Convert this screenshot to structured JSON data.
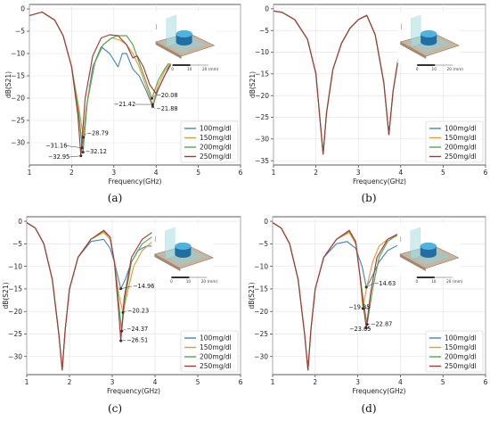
{
  "figure": {
    "colors": {
      "s100": "#4a86b3",
      "s150": "#e49b3d",
      "s200": "#52a852",
      "s250": "#a33a3a"
    }
  },
  "chart_data": [
    {
      "id": "a",
      "caption": "(a)",
      "type": "line",
      "xlabel": "Frequency(GHz)",
      "ylabel": "dB(S21)",
      "xlim": [
        1,
        6
      ],
      "ylim": [
        -35,
        1
      ],
      "xticks": [
        1,
        2,
        3,
        4,
        5,
        6
      ],
      "yticks": [
        0,
        -5,
        -10,
        -15,
        -20,
        -25,
        -30
      ],
      "legend_position": "bottom-right",
      "grid": true,
      "inset": {
        "ticks": [
          "0",
          "10",
          "20",
          "(mm)"
        ]
      },
      "series": [
        {
          "name": "100mg/dl",
          "color": "#4a86b3",
          "x": [
            1.0,
            1.3,
            1.6,
            1.8,
            2.0,
            2.15,
            2.25,
            2.35,
            2.5,
            2.7,
            2.9,
            3.1,
            3.2,
            3.3,
            3.45,
            3.6,
            3.75,
            3.92,
            4.05,
            4.2,
            4.35
          ],
          "y": [
            -1.5,
            -0.7,
            -2.5,
            -6,
            -13,
            -22,
            -31.16,
            -22,
            -13,
            -8.5,
            -10,
            -13,
            -10,
            -10,
            -13.5,
            -15,
            -18,
            -21.88,
            -18,
            -15,
            -12
          ]
        },
        {
          "name": "150mg/dl",
          "color": "#e49b3d",
          "x": [
            1.0,
            1.3,
            1.6,
            1.8,
            2.0,
            2.15,
            2.28,
            2.38,
            2.55,
            2.75,
            2.95,
            3.15,
            3.3,
            3.45,
            3.6,
            3.75,
            3.92,
            4.05,
            4.2,
            4.35
          ],
          "y": [
            -1.5,
            -0.7,
            -2.5,
            -6,
            -13,
            -21,
            -28.79,
            -20,
            -12,
            -8,
            -6.5,
            -7,
            -8,
            -10,
            -13,
            -17,
            -21.42,
            -17,
            -14,
            -12
          ]
        },
        {
          "name": "200mg/dl",
          "color": "#52a852",
          "x": [
            1.0,
            1.3,
            1.6,
            1.8,
            2.0,
            2.15,
            2.27,
            2.37,
            2.55,
            2.75,
            2.95,
            3.1,
            3.3,
            3.45,
            3.6,
            3.75,
            3.9,
            4.05,
            4.2,
            4.35
          ],
          "y": [
            -1.5,
            -0.7,
            -2.5,
            -6,
            -13,
            -22,
            -32.12,
            -21,
            -12,
            -8,
            -6.5,
            -6,
            -6,
            -8,
            -12,
            -16,
            -20.08,
            -16,
            -13.5,
            -11.5
          ]
        },
        {
          "name": "250mg/dl",
          "color": "#a33a3a",
          "x": [
            1.0,
            1.3,
            1.6,
            1.8,
            2.0,
            2.15,
            2.22,
            2.32,
            2.5,
            2.7,
            2.9,
            3.1,
            3.3,
            3.45,
            3.55,
            3.7,
            3.85,
            4.0,
            4.2,
            4.35
          ],
          "y": [
            -1.5,
            -0.7,
            -2.5,
            -6,
            -13,
            -24,
            -32.95,
            -20,
            -10.5,
            -6.5,
            -5.8,
            -6,
            -8,
            -11,
            -10.5,
            -13,
            -17,
            -19,
            -15,
            -12.5
          ]
        }
      ],
      "annotations": [
        {
          "text": "-28.79",
          "x": 2.28,
          "y": -28.79,
          "tx": 2.36,
          "ty": -28.3
        },
        {
          "text": "-31.16",
          "x": 2.25,
          "y": -31.16,
          "tx": 1.38,
          "ty": -31.1
        },
        {
          "text": "-32.12",
          "x": 2.27,
          "y": -32.12,
          "tx": 2.32,
          "ty": -32.4
        },
        {
          "text": "-32.95",
          "x": 2.22,
          "y": -32.95,
          "tx": 1.44,
          "ty": -33.6
        },
        {
          "text": "-20.08",
          "x": 3.9,
          "y": -20.08,
          "tx": 4.0,
          "ty": -19.8
        },
        {
          "text": "-21.42",
          "x": 3.92,
          "y": -21.42,
          "tx": 3.0,
          "ty": -21.8
        },
        {
          "text": "-21.88",
          "x": 3.92,
          "y": -21.88,
          "tx": 4.0,
          "ty": -22.8
        }
      ]
    },
    {
      "id": "b",
      "caption": "(b)",
      "type": "line",
      "xlabel": "Frequency(GHz)",
      "ylabel": "dB(S21)",
      "xlim": [
        1,
        6
      ],
      "ylim": [
        -36,
        1
      ],
      "xticks": [
        1,
        2,
        3,
        4,
        5,
        6
      ],
      "yticks": [
        0,
        -5,
        -10,
        -15,
        -20,
        -25,
        -30,
        -35
      ],
      "legend_position": "bottom-right",
      "grid": true,
      "inset": {
        "ticks": [
          "0",
          "10",
          "20",
          "(mm)"
        ]
      },
      "series": [
        {
          "name": "100mg/dl",
          "color": "#4a86b3",
          "x": [
            1.0,
            1.2,
            1.5,
            1.8,
            2.0,
            2.1,
            2.17,
            2.25,
            2.4,
            2.6,
            2.8,
            3.0,
            3.2,
            3.4,
            3.6,
            3.72,
            3.82,
            3.95,
            4.1
          ],
          "y": [
            -0.5,
            -0.8,
            -2.5,
            -7,
            -15,
            -26,
            -33.5,
            -24,
            -14,
            -8,
            -4.5,
            -2.5,
            -1.5,
            -6,
            -17,
            -29,
            -19,
            -11,
            -7.5
          ]
        },
        {
          "name": "150mg/dl",
          "color": "#e49b3d",
          "x": [
            1.0,
            1.2,
            1.5,
            1.8,
            2.0,
            2.1,
            2.17,
            2.25,
            2.4,
            2.6,
            2.8,
            3.0,
            3.2,
            3.4,
            3.6,
            3.72,
            3.82,
            3.95,
            4.1
          ],
          "y": [
            -0.5,
            -0.8,
            -2.5,
            -7,
            -15,
            -26,
            -33.5,
            -24,
            -14,
            -8,
            -4.5,
            -2.5,
            -1.5,
            -6,
            -17,
            -29,
            -19,
            -11,
            -7.5
          ]
        },
        {
          "name": "200mg/dl",
          "color": "#52a852",
          "x": [
            1.0,
            1.2,
            1.5,
            1.8,
            2.0,
            2.1,
            2.17,
            2.25,
            2.4,
            2.6,
            2.8,
            3.0,
            3.2,
            3.4,
            3.6,
            3.72,
            3.82,
            3.95,
            4.1
          ],
          "y": [
            -0.5,
            -0.8,
            -2.5,
            -7,
            -15,
            -26,
            -33.5,
            -24,
            -14,
            -8,
            -4.5,
            -2.5,
            -1.5,
            -6,
            -17,
            -29,
            -19,
            -11,
            -7.5
          ]
        },
        {
          "name": "250mg/dl",
          "color": "#a33a3a",
          "x": [
            1.0,
            1.2,
            1.5,
            1.8,
            2.0,
            2.1,
            2.17,
            2.25,
            2.4,
            2.6,
            2.8,
            3.0,
            3.2,
            3.4,
            3.6,
            3.72,
            3.82,
            3.95,
            4.1
          ],
          "y": [
            -0.5,
            -0.8,
            -2.5,
            -7,
            -15,
            -26,
            -33.5,
            -24,
            -14,
            -8,
            -4.5,
            -2.5,
            -1.5,
            -6,
            -17,
            -29,
            -19,
            -11,
            -7.5
          ]
        }
      ],
      "annotations": []
    },
    {
      "id": "c",
      "caption": "(c)",
      "type": "line",
      "xlabel": "Frequency(GHz)",
      "ylabel": "dB(S21)",
      "xlim": [
        1,
        6
      ],
      "ylim": [
        -34,
        1
      ],
      "xticks": [
        1,
        2,
        3,
        4,
        5,
        6
      ],
      "yticks": [
        0,
        -5,
        -10,
        -15,
        -20,
        -25,
        -30
      ],
      "legend_position": "bottom-right",
      "grid": true,
      "inset": {
        "ticks": [
          "0",
          "10",
          "20",
          "(mm)"
        ]
      },
      "series": [
        {
          "name": "100mg/dl",
          "color": "#4a86b3",
          "x": [
            1.0,
            1.2,
            1.4,
            1.6,
            1.75,
            1.83,
            1.9,
            2.0,
            2.2,
            2.5,
            2.8,
            2.95,
            3.05,
            3.2,
            3.3,
            3.45,
            3.6,
            3.8,
            4.0
          ],
          "y": [
            -0.3,
            -1.5,
            -5,
            -13,
            -25,
            -33,
            -24,
            -15,
            -8,
            -4.5,
            -4,
            -6,
            -9,
            -14.96,
            -13,
            -9,
            -6.5,
            -5.5,
            -5.5
          ]
        },
        {
          "name": "150mg/dl",
          "color": "#e49b3d",
          "x": [
            1.0,
            1.2,
            1.4,
            1.6,
            1.75,
            1.83,
            1.9,
            2.0,
            2.2,
            2.5,
            2.8,
            2.95,
            3.05,
            3.15,
            3.25,
            3.35,
            3.5,
            3.7,
            4.0
          ],
          "y": [
            -0.3,
            -1.5,
            -5,
            -13,
            -25,
            -33,
            -24,
            -15,
            -8,
            -4,
            -2.5,
            -4,
            -9,
            -16,
            -20.23,
            -16,
            -10,
            -6.5,
            -4
          ]
        },
        {
          "name": "200mg/dl",
          "color": "#52a852",
          "x": [
            1.0,
            1.2,
            1.4,
            1.6,
            1.75,
            1.83,
            1.9,
            2.0,
            2.2,
            2.5,
            2.8,
            2.95,
            3.05,
            3.15,
            3.22,
            3.3,
            3.45,
            3.7,
            4.0
          ],
          "y": [
            -0.3,
            -1.5,
            -5,
            -13,
            -25,
            -33,
            -24,
            -15,
            -8,
            -4,
            -2.2,
            -3.5,
            -9,
            -18,
            -24.37,
            -17,
            -9,
            -5,
            -3
          ]
        },
        {
          "name": "250mg/dl",
          "color": "#a33a3a",
          "x": [
            1.0,
            1.2,
            1.4,
            1.6,
            1.75,
            1.83,
            1.9,
            2.0,
            2.2,
            2.5,
            2.8,
            2.95,
            3.05,
            3.15,
            3.2,
            3.28,
            3.45,
            3.7,
            4.0
          ],
          "y": [
            -0.3,
            -1.5,
            -5,
            -13,
            -25,
            -33,
            -24,
            -15,
            -8,
            -4,
            -2,
            -3.5,
            -9,
            -20,
            -26.51,
            -17,
            -8,
            -4,
            -2
          ]
        }
      ],
      "annotations": [
        {
          "text": "-14.96",
          "x": 3.2,
          "y": -14.96,
          "tx": 3.48,
          "ty": -14.8
        },
        {
          "text": "-20.23",
          "x": 3.25,
          "y": -20.23,
          "tx": 3.35,
          "ty": -20.3
        },
        {
          "text": "-24.37",
          "x": 3.22,
          "y": -24.37,
          "tx": 3.33,
          "ty": -24.3
        },
        {
          "text": "-26.51",
          "x": 3.2,
          "y": -26.51,
          "tx": 3.33,
          "ty": -26.8
        }
      ]
    },
    {
      "id": "d",
      "caption": "(d)",
      "type": "line",
      "xlabel": "Frequency(GHz)",
      "ylabel": "dB(S21)",
      "xlim": [
        1,
        6
      ],
      "ylim": [
        -34,
        1
      ],
      "xticks": [
        1,
        2,
        3,
        4,
        5,
        6
      ],
      "yticks": [
        0,
        -5,
        -10,
        -15,
        -20,
        -25,
        -30
      ],
      "legend_position": "bottom-right",
      "grid": true,
      "inset": {
        "ticks": [
          "0",
          "10",
          "20",
          "(mm)"
        ]
      },
      "series": [
        {
          "name": "100mg/dl",
          "color": "#4a86b3",
          "x": [
            1.0,
            1.2,
            1.4,
            1.6,
            1.75,
            1.83,
            1.9,
            2.0,
            2.2,
            2.5,
            2.75,
            2.95,
            3.1,
            3.2,
            3.3,
            3.5,
            3.7,
            3.9,
            4.0,
            4.2
          ],
          "y": [
            -0.3,
            -1.5,
            -5,
            -13,
            -25,
            -33,
            -24,
            -15,
            -8,
            -5,
            -4.5,
            -6,
            -10,
            -14.63,
            -13,
            -9,
            -6.5,
            -5.5,
            -5,
            -5.5
          ]
        },
        {
          "name": "150mg/dl",
          "color": "#e49b3d",
          "x": [
            1.0,
            1.2,
            1.4,
            1.6,
            1.75,
            1.83,
            1.9,
            2.0,
            2.2,
            2.5,
            2.8,
            2.95,
            3.05,
            3.12,
            3.2,
            3.35,
            3.5,
            3.7,
            4.0,
            4.2
          ],
          "y": [
            -0.3,
            -1.5,
            -5,
            -13,
            -25,
            -33,
            -24,
            -15,
            -8,
            -4,
            -2.5,
            -5,
            -12,
            -19.35,
            -15,
            -9,
            -5.5,
            -4,
            -3,
            -2.5
          ]
        },
        {
          "name": "200mg/dl",
          "color": "#52a852",
          "x": [
            1.0,
            1.2,
            1.4,
            1.6,
            1.75,
            1.83,
            1.9,
            2.0,
            2.2,
            2.5,
            2.8,
            2.95,
            3.05,
            3.15,
            3.22,
            3.35,
            3.5,
            3.7,
            4.0,
            4.2
          ],
          "y": [
            -0.3,
            -1.5,
            -5,
            -13,
            -25,
            -33,
            -24,
            -15,
            -8,
            -4,
            -2.2,
            -4.5,
            -12,
            -19,
            -22.87,
            -15,
            -8,
            -4.5,
            -2.5,
            -2
          ]
        },
        {
          "name": "250mg/dl",
          "color": "#a33a3a",
          "x": [
            1.0,
            1.2,
            1.4,
            1.6,
            1.75,
            1.83,
            1.9,
            2.0,
            2.2,
            2.5,
            2.8,
            2.95,
            3.05,
            3.12,
            3.2,
            3.3,
            3.45,
            3.7,
            4.0,
            4.2
          ],
          "y": [
            -0.3,
            -1.5,
            -5,
            -13,
            -25,
            -33,
            -24,
            -15,
            -8,
            -4,
            -2,
            -4.5,
            -12,
            -18,
            -23.65,
            -16,
            -8,
            -4,
            -2.5,
            -2
          ]
        }
      ],
      "annotations": [
        {
          "text": "-14.63",
          "x": 3.2,
          "y": -14.63,
          "tx": 3.38,
          "ty": -14.2
        },
        {
          "text": "-19.35",
          "x": 3.12,
          "y": -19.35,
          "tx": 2.78,
          "ty": -19.5
        },
        {
          "text": "-22.87",
          "x": 3.22,
          "y": -22.87,
          "tx": 3.3,
          "ty": -23.2
        },
        {
          "text": "-23.65",
          "x": 3.2,
          "y": -23.65,
          "tx": 2.8,
          "ty": -24.3
        }
      ]
    }
  ]
}
